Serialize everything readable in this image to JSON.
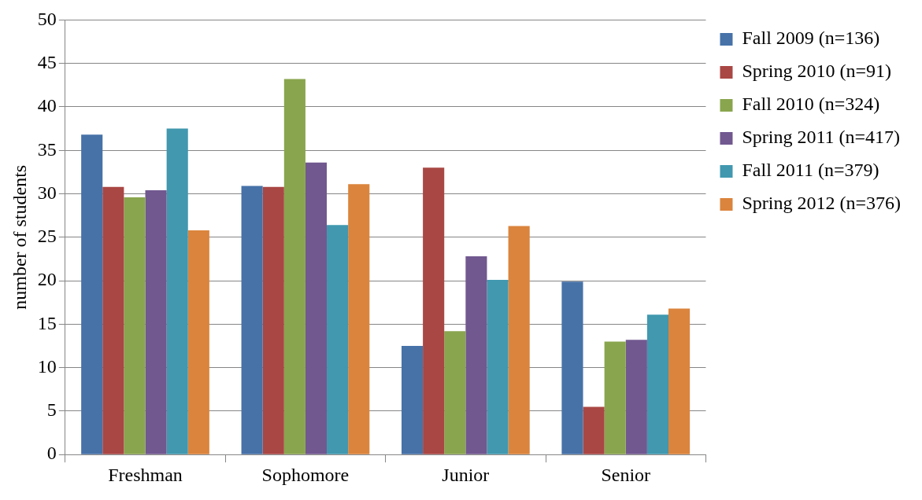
{
  "chart_data": {
    "type": "bar",
    "ylabel": "number of students",
    "categories": [
      "Freshman",
      "Sophomore",
      "Junior",
      "Senior"
    ],
    "series": [
      {
        "name": "Fall 2009 (n=136)",
        "color": "#4672a8",
        "values": [
          36.8,
          30.9,
          12.5,
          19.9
        ]
      },
      {
        "name": "Spring 2010 (n=91)",
        "color": "#a94744",
        "values": [
          30.8,
          30.8,
          33.0,
          5.5
        ]
      },
      {
        "name": "Fall 2010 (n=324)",
        "color": "#89a54e",
        "values": [
          29.6,
          43.2,
          14.2,
          13.0
        ]
      },
      {
        "name": "Spring 2011 (n=417)",
        "color": "#71588f",
        "values": [
          30.4,
          33.6,
          22.8,
          13.2
        ]
      },
      {
        "name": "Fall 2011 (n=379)",
        "color": "#4198af",
        "values": [
          37.5,
          26.4,
          20.1,
          16.1
        ]
      },
      {
        "name": "Spring 2012 (n=376)",
        "color": "#db843d",
        "values": [
          25.8,
          31.1,
          26.3,
          16.8
        ]
      }
    ],
    "ylim": [
      0,
      50
    ],
    "yticks": [
      0,
      5,
      10,
      15,
      20,
      25,
      30,
      35,
      40,
      45,
      50
    ],
    "grid": "y",
    "legend": "right"
  }
}
